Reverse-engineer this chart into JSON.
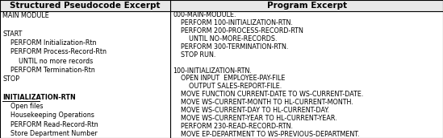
{
  "col1_header": "Structured Pseudocode Excerpt",
  "col2_header": "Program Excerpt",
  "col1_lines": [
    [
      "MAIN MODULE",
      false
    ],
    [
      "",
      false
    ],
    [
      "START",
      false
    ],
    [
      "    PERFORM Initialization-Rtn",
      false
    ],
    [
      "    PERFORM Process-Record-Rtn",
      false
    ],
    [
      "        UNTIL no more records",
      false
    ],
    [
      "    PERFORM Termination-Rtn",
      false
    ],
    [
      "STOP",
      false
    ],
    [
      "",
      false
    ],
    [
      "INITIALIZATION-RTN",
      true
    ],
    [
      "    Open files",
      false
    ],
    [
      "    Housekeeping Operations",
      false
    ],
    [
      "    PERFORM Read-Record-Rtn",
      false
    ],
    [
      "    Store Department Number",
      false
    ]
  ],
  "col2_lines": [
    "000-MAIN-MODULE.",
    "    PERFORM 100-INITIALIZATION-RTN.",
    "    PERFORM 200-PROCESS-RECORD-RTN",
    "        UNTIL NO-MORE-RECORDS.",
    "    PERFORM 300-TERMINATION-RTN.",
    "    STOP RUN.",
    "",
    "100-INITIALIZATION-RTN.",
    "    OPEN INPUT  EMPLOYEE-PAY-FILE",
    "        OUTPUT SALES-REPORT-FILE.",
    "    MOVE FUNCTION CURRENT-DATE TO WS-CURRENT-DATE.",
    "    MOVE WS-CURRENT-MONTH TO HL-CURRENT-MONTH.",
    "    MOVE WS-CURRENT-DAY TO HL-CURRENT-DAY.",
    "    MOVE WS-CURRENT-YEAR TO HL-CURRENT-YEAR.",
    "    PERFORM 230-READ-RECORD-RTN.",
    "    MOVE EP-DEPARTMENT TO WS-PREVIOUS-DEPARTMENT."
  ],
  "bg_color": "#ffffff",
  "header_bg": "#e8e8e8",
  "border_color": "#000000",
  "font_size": 5.8,
  "header_font_size": 7.5,
  "col_split": 0.385
}
